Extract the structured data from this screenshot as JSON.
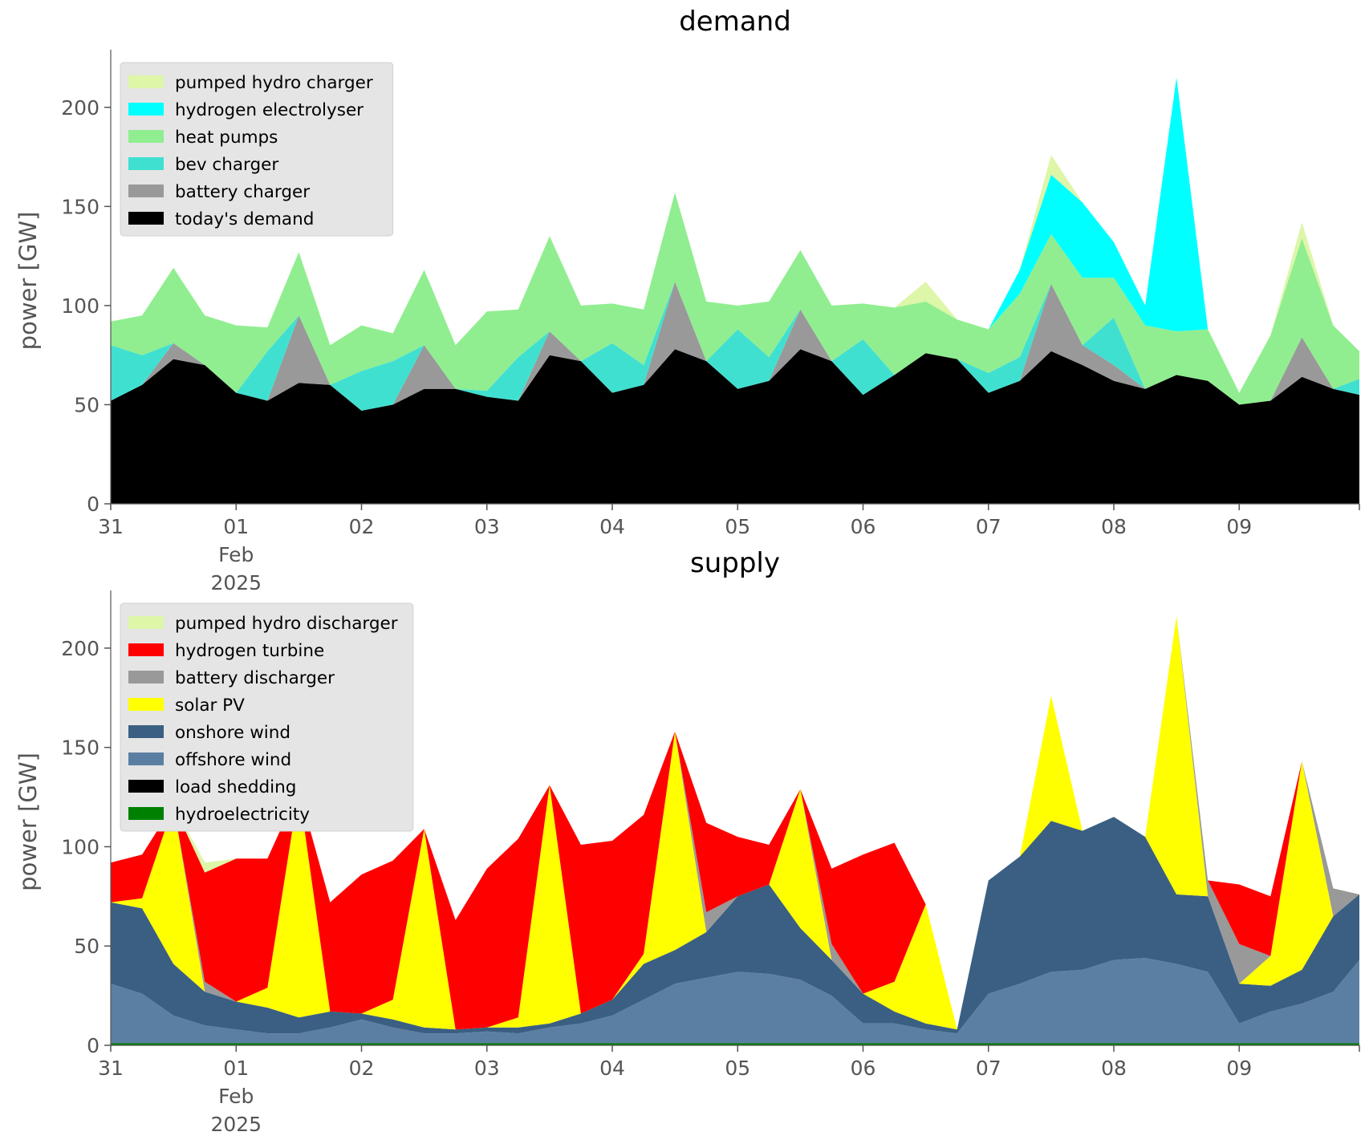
{
  "chart_data": [
    {
      "type": "area",
      "title": "demand",
      "xlabel": "",
      "ylabel": "power [GW]",
      "ylim": [
        0,
        225
      ],
      "xlim": [
        "2025-01-31",
        "2025-02-09 23:00"
      ],
      "yticks": [
        0,
        50,
        100,
        150,
        200
      ],
      "xtick_labels": [
        "31",
        "01\nFeb\n2025",
        "02",
        "03",
        "04",
        "05",
        "06",
        "07",
        "08",
        "09"
      ],
      "stacked": true,
      "grid": false,
      "legend_position": "top-left",
      "x": [
        "2025-01-31 00:00",
        "2025-01-31 06:00",
        "2025-01-31 12:00",
        "2025-01-31 18:00",
        "2025-02-01 00:00",
        "2025-02-01 06:00",
        "2025-02-01 12:00",
        "2025-02-01 18:00",
        "2025-02-02 00:00",
        "2025-02-02 06:00",
        "2025-02-02 12:00",
        "2025-02-02 18:00",
        "2025-02-03 00:00",
        "2025-02-03 06:00",
        "2025-02-03 12:00",
        "2025-02-03 18:00",
        "2025-02-04 00:00",
        "2025-02-04 06:00",
        "2025-02-04 12:00",
        "2025-02-04 18:00",
        "2025-02-05 00:00",
        "2025-02-05 06:00",
        "2025-02-05 12:00",
        "2025-02-05 18:00",
        "2025-02-06 00:00",
        "2025-02-06 06:00",
        "2025-02-06 12:00",
        "2025-02-06 18:00",
        "2025-02-07 00:00",
        "2025-02-07 06:00",
        "2025-02-07 12:00",
        "2025-02-07 18:00",
        "2025-02-08 00:00",
        "2025-02-08 06:00",
        "2025-02-08 12:00",
        "2025-02-08 18:00",
        "2025-02-09 00:00",
        "2025-02-09 06:00",
        "2025-02-09 12:00",
        "2025-02-09 18:00",
        "2025-02-09 23:00"
      ],
      "series": [
        {
          "name": "today's demand",
          "color": "#000000",
          "values": [
            52,
            60,
            73,
            70,
            56,
            52,
            61,
            60,
            47,
            50,
            58,
            58,
            54,
            52,
            75,
            72,
            56,
            60,
            78,
            72,
            58,
            62,
            78,
            72,
            55,
            65,
            76,
            73,
            56,
            62,
            77,
            70,
            62,
            58,
            65,
            62,
            50,
            52,
            64,
            58,
            55
          ]
        },
        {
          "name": "battery charger",
          "color": "#999999",
          "values": [
            0,
            0,
            8,
            0,
            0,
            0,
            34,
            0,
            0,
            0,
            22,
            0,
            0,
            0,
            12,
            0,
            0,
            0,
            34,
            0,
            0,
            0,
            20,
            0,
            0,
            0,
            0,
            0,
            0,
            0,
            34,
            10,
            8,
            0,
            0,
            0,
            0,
            0,
            20,
            0,
            0
          ]
        },
        {
          "name": "bev charger",
          "color": "#40e0d0",
          "values": [
            28,
            15,
            0,
            0,
            0,
            25,
            0,
            0,
            20,
            22,
            0,
            0,
            3,
            22,
            0,
            0,
            25,
            10,
            0,
            0,
            30,
            12,
            0,
            0,
            28,
            0,
            0,
            0,
            10,
            12,
            0,
            0,
            24,
            0,
            0,
            0,
            0,
            0,
            0,
            0,
            8
          ]
        },
        {
          "name": "heat pumps",
          "color": "#90ee90",
          "values": [
            12,
            20,
            38,
            25,
            34,
            12,
            32,
            20,
            23,
            14,
            38,
            22,
            40,
            24,
            48,
            28,
            20,
            28,
            45,
            30,
            12,
            28,
            30,
            28,
            18,
            34,
            26,
            20,
            22,
            32,
            25,
            34,
            20,
            32,
            22,
            26,
            6,
            33,
            50,
            32,
            14
          ]
        },
        {
          "name": "hydrogen electrolyser",
          "color": "#00ffff",
          "values": [
            0,
            0,
            0,
            0,
            0,
            0,
            0,
            0,
            0,
            0,
            0,
            0,
            0,
            0,
            0,
            0,
            0,
            0,
            0,
            0,
            0,
            0,
            0,
            0,
            0,
            0,
            0,
            0,
            0,
            12,
            30,
            38,
            18,
            10,
            128,
            0,
            0,
            0,
            0,
            0,
            0
          ]
        },
        {
          "name": "pumped hydro charger",
          "color": "#ddf6a8",
          "values": [
            0,
            0,
            0,
            0,
            0,
            0,
            0,
            0,
            0,
            0,
            0,
            0,
            0,
            0,
            0,
            0,
            0,
            0,
            0,
            0,
            0,
            0,
            0,
            0,
            0,
            0,
            10,
            0,
            0,
            0,
            10,
            0,
            0,
            0,
            0,
            0,
            0,
            0,
            8,
            0,
            0
          ]
        }
      ]
    },
    {
      "type": "area",
      "title": "supply",
      "xlabel": "",
      "ylabel": "power [GW]",
      "ylim": [
        0,
        225
      ],
      "xlim": [
        "2025-01-31",
        "2025-02-09 23:00"
      ],
      "yticks": [
        0,
        50,
        100,
        150,
        200
      ],
      "xtick_labels": [
        "31",
        "01\nFeb\n2025",
        "02",
        "03",
        "04",
        "05",
        "06",
        "07",
        "08",
        "09"
      ],
      "stacked": true,
      "grid": false,
      "legend_position": "top-left",
      "x": [
        "2025-01-31 00:00",
        "2025-01-31 06:00",
        "2025-01-31 12:00",
        "2025-01-31 18:00",
        "2025-02-01 00:00",
        "2025-02-01 06:00",
        "2025-02-01 12:00",
        "2025-02-01 18:00",
        "2025-02-02 00:00",
        "2025-02-02 06:00",
        "2025-02-02 12:00",
        "2025-02-02 18:00",
        "2025-02-03 00:00",
        "2025-02-03 06:00",
        "2025-02-03 12:00",
        "2025-02-03 18:00",
        "2025-02-04 00:00",
        "2025-02-04 06:00",
        "2025-02-04 12:00",
        "2025-02-04 18:00",
        "2025-02-05 00:00",
        "2025-02-05 06:00",
        "2025-02-05 12:00",
        "2025-02-05 18:00",
        "2025-02-06 00:00",
        "2025-02-06 06:00",
        "2025-02-06 12:00",
        "2025-02-06 18:00",
        "2025-02-07 00:00",
        "2025-02-07 06:00",
        "2025-02-07 12:00",
        "2025-02-07 18:00",
        "2025-02-08 00:00",
        "2025-02-08 06:00",
        "2025-02-08 12:00",
        "2025-02-08 18:00",
        "2025-02-09 00:00",
        "2025-02-09 06:00",
        "2025-02-09 12:00",
        "2025-02-09 18:00",
        "2025-02-09 23:00"
      ],
      "series": [
        {
          "name": "hydroelectricity",
          "color": "#008000",
          "values": [
            1,
            1,
            1,
            1,
            1,
            1,
            1,
            1,
            1,
            1,
            1,
            1,
            1,
            1,
            1,
            1,
            1,
            1,
            1,
            1,
            1,
            1,
            1,
            1,
            1,
            1,
            1,
            1,
            1,
            1,
            1,
            1,
            1,
            1,
            1,
            1,
            1,
            1,
            1,
            1,
            1
          ]
        },
        {
          "name": "load shedding",
          "color": "#000000",
          "values": [
            0,
            0,
            0,
            0,
            0,
            0,
            0,
            0,
            0,
            0,
            0,
            0,
            0,
            0,
            0,
            0,
            0,
            0,
            0,
            0,
            0,
            0,
            0,
            0,
            0,
            0,
            0,
            0,
            0,
            0,
            0,
            0,
            0,
            0,
            0,
            0,
            0,
            0,
            0,
            0,
            0
          ]
        },
        {
          "name": "offshore wind",
          "color": "#5b7fa3",
          "values": [
            30,
            25,
            14,
            9,
            7,
            5,
            5,
            8,
            12,
            8,
            5,
            5,
            6,
            5,
            8,
            10,
            14,
            22,
            30,
            33,
            36,
            35,
            32,
            24,
            10,
            10,
            7,
            5,
            25,
            30,
            36,
            37,
            42,
            43,
            40,
            36,
            10,
            16,
            20,
            26,
            42
          ]
        },
        {
          "name": "onshore wind",
          "color": "#3a5f82",
          "values": [
            41,
            43,
            26,
            17,
            14,
            13,
            8,
            8,
            3,
            4,
            3,
            2,
            2,
            3,
            2,
            5,
            8,
            18,
            17,
            23,
            38,
            45,
            26,
            18,
            15,
            6,
            3,
            2,
            57,
            64,
            76,
            70,
            72,
            61,
            35,
            38,
            20,
            13,
            17,
            38,
            33
          ]
        },
        {
          "name": "solar PV",
          "color": "#ffff00",
          "values": [
            0,
            5,
            80,
            0,
            0,
            10,
            115,
            0,
            0,
            10,
            100,
            0,
            0,
            5,
            120,
            0,
            0,
            5,
            110,
            0,
            0,
            0,
            70,
            0,
            0,
            15,
            60,
            0,
            0,
            0,
            63,
            0,
            0,
            0,
            140,
            0,
            0,
            15,
            105,
            0,
            0
          ]
        },
        {
          "name": "battery discharger",
          "color": "#999999",
          "values": [
            0,
            0,
            0,
            5,
            0,
            0,
            0,
            0,
            0,
            0,
            0,
            0,
            0,
            0,
            0,
            0,
            0,
            0,
            0,
            10,
            0,
            0,
            0,
            8,
            0,
            0,
            0,
            0,
            0,
            0,
            0,
            0,
            0,
            0,
            0,
            8,
            20,
            0,
            0,
            14,
            0
          ]
        },
        {
          "name": "hydrogen turbine",
          "color": "#ff0000",
          "values": [
            20,
            22,
            0,
            55,
            72,
            65,
            0,
            55,
            70,
            70,
            0,
            55,
            80,
            90,
            0,
            85,
            80,
            70,
            0,
            45,
            30,
            20,
            0,
            38,
            70,
            70,
            0,
            0,
            0,
            0,
            0,
            0,
            0,
            0,
            0,
            0,
            30,
            30,
            0,
            0,
            0
          ]
        },
        {
          "name": "pumped hydro discharger",
          "color": "#ddf6a8",
          "values": [
            0,
            0,
            0,
            5,
            0,
            0,
            0,
            0,
            0,
            0,
            0,
            0,
            0,
            0,
            0,
            0,
            0,
            0,
            0,
            0,
            0,
            0,
            0,
            0,
            0,
            0,
            0,
            0,
            0,
            0,
            0,
            0,
            0,
            0,
            0,
            0,
            0,
            0,
            0,
            0,
            0
          ]
        }
      ]
    }
  ]
}
